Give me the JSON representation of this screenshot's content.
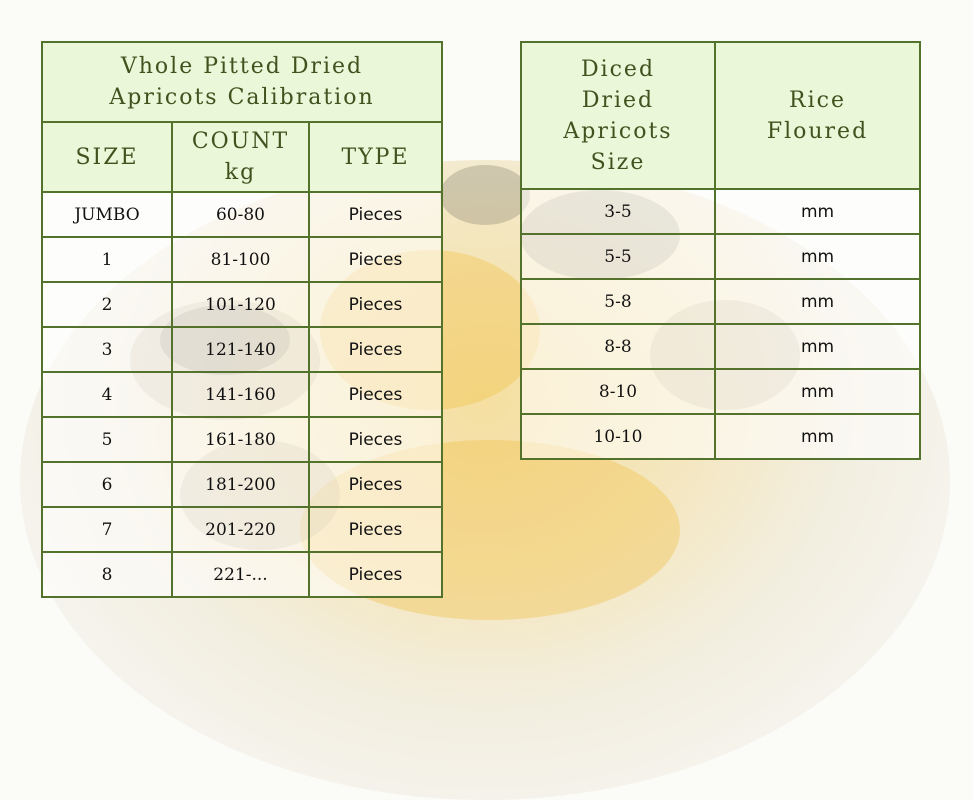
{
  "whole_table": {
    "title_line1": "Vhole Pitted Dried",
    "title_line2": "Apricots Calibration",
    "headers": {
      "size": "SIZE",
      "count_line1": "COUNT",
      "count_line2": "kg",
      "type": "TYPE"
    },
    "rows": [
      {
        "size": "JUMBO",
        "count": "60-80",
        "type": "Pieces"
      },
      {
        "size": "1",
        "count": "81-100",
        "type": "Pieces"
      },
      {
        "size": "2",
        "count": "101-120",
        "type": "Pieces"
      },
      {
        "size": "3",
        "count": "121-140",
        "type": "Pieces"
      },
      {
        "size": "4",
        "count": "141-160",
        "type": "Pieces"
      },
      {
        "size": "5",
        "count": "161-180",
        "type": "Pieces"
      },
      {
        "size": "6",
        "count": "181-200",
        "type": "Pieces"
      },
      {
        "size": "7",
        "count": "201-220",
        "type": "Pieces"
      },
      {
        "size": "8",
        "count": "221-...",
        "type": "Pieces"
      }
    ]
  },
  "diced_table": {
    "headers": {
      "size_line1": "Diced",
      "size_line2": "Dried",
      "size_line3": "Apricots",
      "size_line4": "Size",
      "rice_line1": "Rice",
      "rice_line2": "Floured"
    },
    "rows": [
      {
        "size": "3-5",
        "unit": "mm"
      },
      {
        "size": "5-5",
        "unit": "mm"
      },
      {
        "size": "5-8",
        "unit": "mm"
      },
      {
        "size": "8-8",
        "unit": "mm"
      },
      {
        "size": "8-10",
        "unit": "mm"
      },
      {
        "size": "10-10",
        "unit": "mm"
      }
    ]
  },
  "colors": {
    "border": "#53722b",
    "header_bg": "#eaf7d8",
    "header_text": "#40531f"
  }
}
